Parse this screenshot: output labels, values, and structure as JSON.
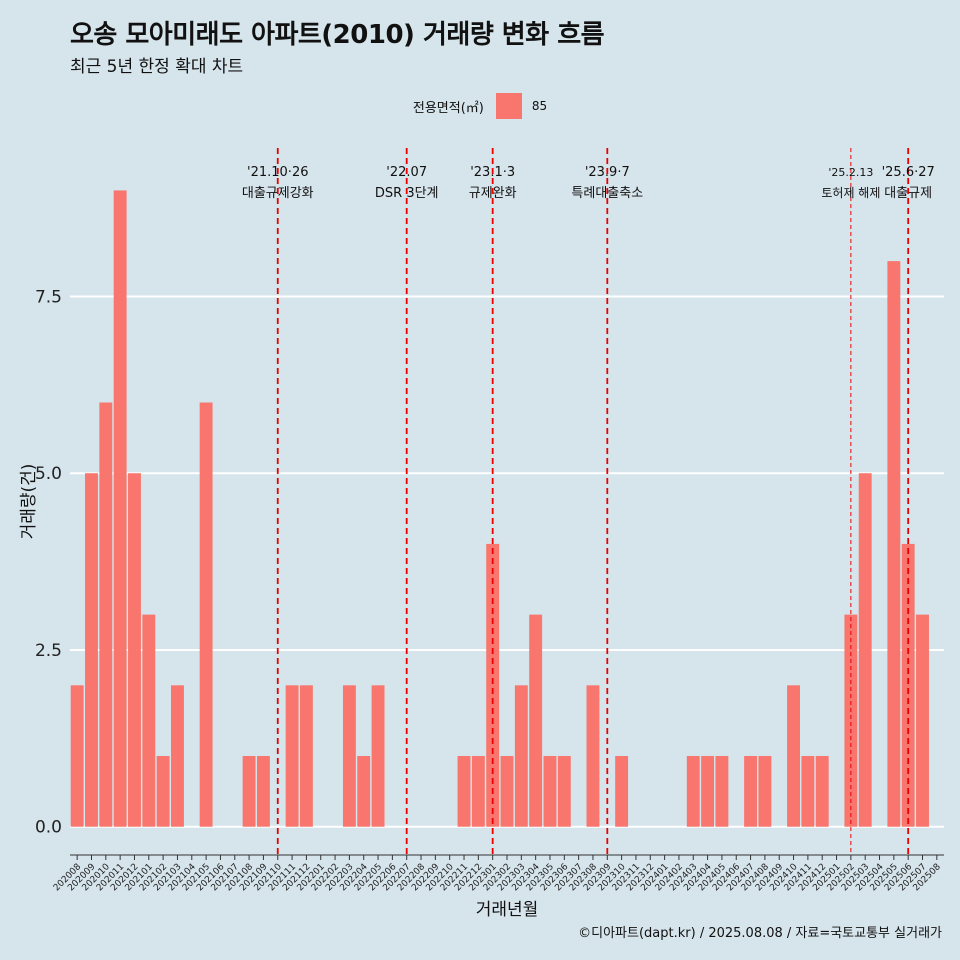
{
  "title": "오송 모아미래도 아파트(2010) 거래량 변화 흐름",
  "subtitle": "최근 5년 한정 확대 차트",
  "legend": {
    "title": "전용면적(㎡)",
    "label": "85"
  },
  "caption": "©디아파트(dapt.kr) / 2025.08.08 / 자료=국토교통부 실거래가",
  "colors": {
    "background": "#d6e4ec",
    "bar": "#f8766d",
    "event_line": "#ee0000",
    "gridline": "#ffffff"
  },
  "chart_data": {
    "type": "bar",
    "xlabel": "거래년월",
    "ylabel": "거래량(건)",
    "ylim": [
      -0.4,
      9.6
    ],
    "yticks": [
      0.0,
      2.5,
      5.0,
      7.5
    ],
    "ytick_labels": [
      "0.0",
      "2.5",
      "5.0",
      "7.5"
    ],
    "grid": "horizontal major",
    "legend_position": "top",
    "categories": [
      "202008",
      "202009",
      "202010",
      "202011",
      "202012",
      "202101",
      "202102",
      "202103",
      "202104",
      "202105",
      "202106",
      "202107",
      "202108",
      "202109",
      "202110",
      "202111",
      "202112",
      "202201",
      "202202",
      "202203",
      "202204",
      "202205",
      "202206",
      "202207",
      "202208",
      "202209",
      "202210",
      "202211",
      "202212",
      "202301",
      "202302",
      "202303",
      "202304",
      "202305",
      "202306",
      "202307",
      "202308",
      "202309",
      "202310",
      "202311",
      "202312",
      "202401",
      "202402",
      "202403",
      "202404",
      "202405",
      "202406",
      "202407",
      "202408",
      "202409",
      "202410",
      "202411",
      "202412",
      "202501",
      "202502",
      "202503",
      "202504",
      "202505",
      "202506",
      "202507",
      "202508"
    ],
    "series": [
      {
        "name": "85",
        "values": [
          2,
          5,
          6,
          9,
          5,
          3,
          1,
          2,
          0,
          6,
          0,
          0,
          1,
          1,
          0,
          2,
          2,
          0,
          0,
          2,
          1,
          2,
          0,
          0,
          0,
          0,
          0,
          1,
          1,
          4,
          1,
          2,
          3,
          1,
          1,
          0,
          2,
          0,
          1,
          0,
          0,
          0,
          0,
          1,
          1,
          1,
          0,
          1,
          1,
          0,
          2,
          1,
          1,
          0,
          3,
          5,
          0,
          8,
          4,
          3,
          0
        ]
      }
    ],
    "events": [
      {
        "category": "202110",
        "date": "'21.10·26",
        "label": "대출규제강화",
        "style": "dashed"
      },
      {
        "category": "202207",
        "date": "'22.07",
        "label": "DSR 3단계",
        "style": "dashed"
      },
      {
        "category": "202301",
        "date": "'23.1·3",
        "label": "규제완화",
        "style": "dashed"
      },
      {
        "category": "202309",
        "date": "'23.9·7",
        "label": "특례대출축소",
        "style": "dashed"
      },
      {
        "category": "202502",
        "date": "'25.2.13",
        "label": "토허제 해제",
        "style": "thin-dashed"
      },
      {
        "category": "202506",
        "date": "'25.6·27",
        "label": "대출규제",
        "style": "dashed"
      }
    ]
  }
}
